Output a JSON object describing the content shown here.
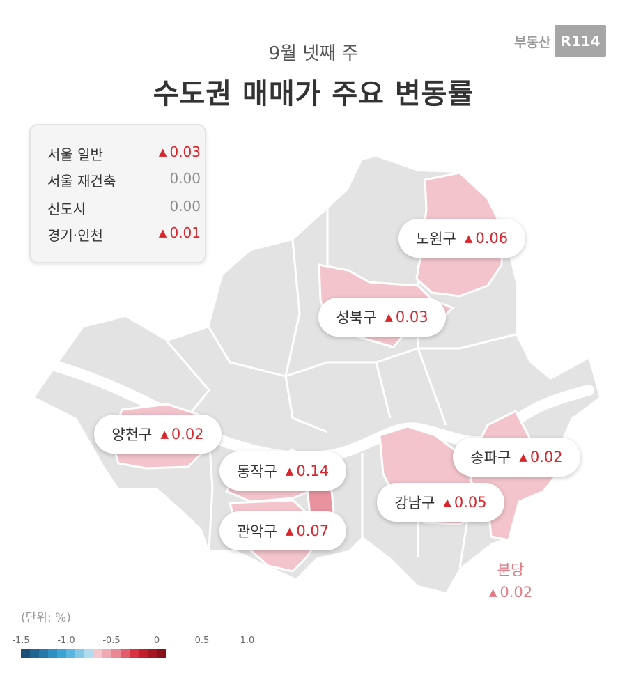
{
  "header": {
    "subtitle": "9월 넷째 주",
    "title": "수도권 매매가 주요 변동률"
  },
  "logo": {
    "text": "부동산",
    "mark": "R114"
  },
  "legend": [
    {
      "label": "서울 일반",
      "marker": "▲",
      "value": "0.03",
      "status": "up"
    },
    {
      "label": "서울 재건축",
      "marker": "",
      "value": "0.00",
      "status": "zero"
    },
    {
      "label": "신도시",
      "marker": "",
      "value": "0.00",
      "status": "zero"
    },
    {
      "label": "경기·인천",
      "marker": "▲",
      "value": "0.01",
      "status": "up"
    }
  ],
  "districts": {
    "nowon": {
      "name": "노원구",
      "marker": "▲",
      "value": "0.06"
    },
    "seongbuk": {
      "name": "성북구",
      "marker": "▲",
      "value": "0.03"
    },
    "yangcheon": {
      "name": "양천구",
      "marker": "▲",
      "value": "0.02"
    },
    "dongjak": {
      "name": "동작구",
      "marker": "▲",
      "value": "0.14"
    },
    "gwanak": {
      "name": "관악구",
      "marker": "▲",
      "value": "0.07"
    },
    "songpa": {
      "name": "송파구",
      "marker": "▲",
      "value": "0.02"
    },
    "gangnam": {
      "name": "강남구",
      "marker": "▲",
      "value": "0.05"
    },
    "bundang": {
      "name": "분당",
      "marker": "▲",
      "value": "0.02"
    }
  },
  "scale": {
    "unit_label": "(단위: %)",
    "tick_labels": [
      "-1.5",
      "-1.0",
      "-0.5",
      "0",
      "0.5",
      "1.0"
    ],
    "colors": [
      "#1a4f78",
      "#1f6590",
      "#2679a8",
      "#2e8fc0",
      "#3aa4d4",
      "#5ab6df",
      "#85c9e6",
      "#b1dbee",
      "#f4c7cf",
      "#f0a8b4",
      "#ea8795",
      "#e25c6c",
      "#d83143",
      "#c01d2d",
      "#a51623",
      "#8a111b"
    ]
  },
  "colors": {
    "accent_up": "#d8262d",
    "map_base": "#e3e3e3",
    "map_highlight": "#f3c4cc"
  }
}
